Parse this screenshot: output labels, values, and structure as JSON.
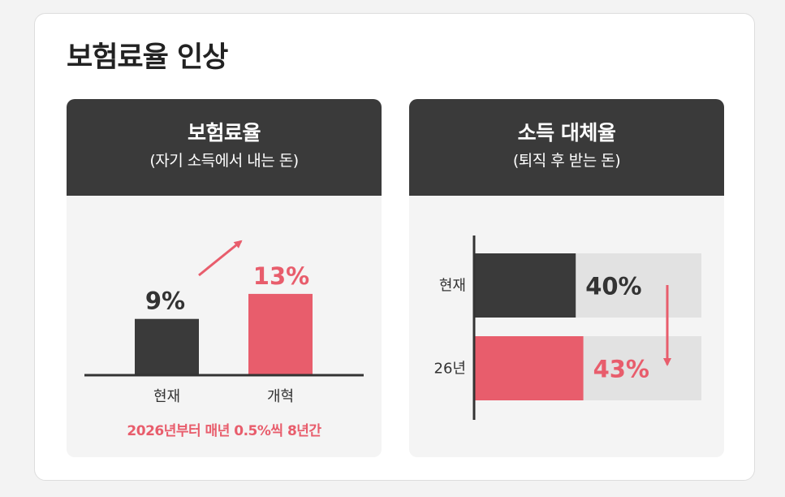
{
  "title": "보험료율 인상",
  "colors": {
    "dark": "#3a3a3a",
    "accent": "#e85d6c",
    "track": "#e2e2e2",
    "axis": "#333333",
    "label": "#333333"
  },
  "left_panel": {
    "title": "보험료율",
    "subtitle": "(자기 소득에서 내는 돈)",
    "footnote": "2026년부터 매년 0.5%씩 8년간"
  },
  "right_panel": {
    "title": "소득 대체율",
    "subtitle": "(퇴직 후 받는 돈)"
  },
  "chart_data": [
    {
      "type": "bar",
      "title": "보험료율",
      "categories": [
        "현재",
        "개혁"
      ],
      "values": [
        9,
        13
      ],
      "value_labels": [
        "9%",
        "13%"
      ],
      "annotation": "up-arrow"
    },
    {
      "type": "bar",
      "orientation": "horizontal",
      "title": "소득 대체율",
      "categories": [
        "현재",
        "26년"
      ],
      "values": [
        40,
        43
      ],
      "value_labels": [
        "40%",
        "43%"
      ],
      "annotation": "down-arrow"
    }
  ]
}
